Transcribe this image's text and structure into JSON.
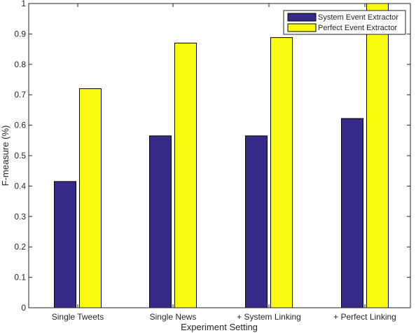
{
  "chart_data": {
    "type": "bar",
    "title": "",
    "xlabel": "Experiment Setting",
    "ylabel": "F-measure (%)",
    "ylim": [
      0,
      1
    ],
    "yticks": [
      0,
      0.1,
      0.2,
      0.3,
      0.4,
      0.5,
      0.6,
      0.7,
      0.8,
      0.9,
      1
    ],
    "ytick_labels": [
      "0",
      "0.1",
      "0.2",
      "0.3",
      "0.4",
      "0.5",
      "0.6",
      "0.7",
      "0.8",
      "0.9",
      "1"
    ],
    "categories": [
      "Single Tweets",
      "Single News",
      "+ System Linking",
      "+ Perfect Linking"
    ],
    "series": [
      {
        "name": "System Event Extractor",
        "color": "#352a87",
        "values": [
          0.415,
          0.565,
          0.565,
          0.622
        ]
      },
      {
        "name": "Perfect Event Extractor",
        "color": "#f9fb0e",
        "values": [
          0.72,
          0.87,
          0.888,
          1.0
        ]
      }
    ],
    "grid": false,
    "legend_position": "top-right"
  }
}
